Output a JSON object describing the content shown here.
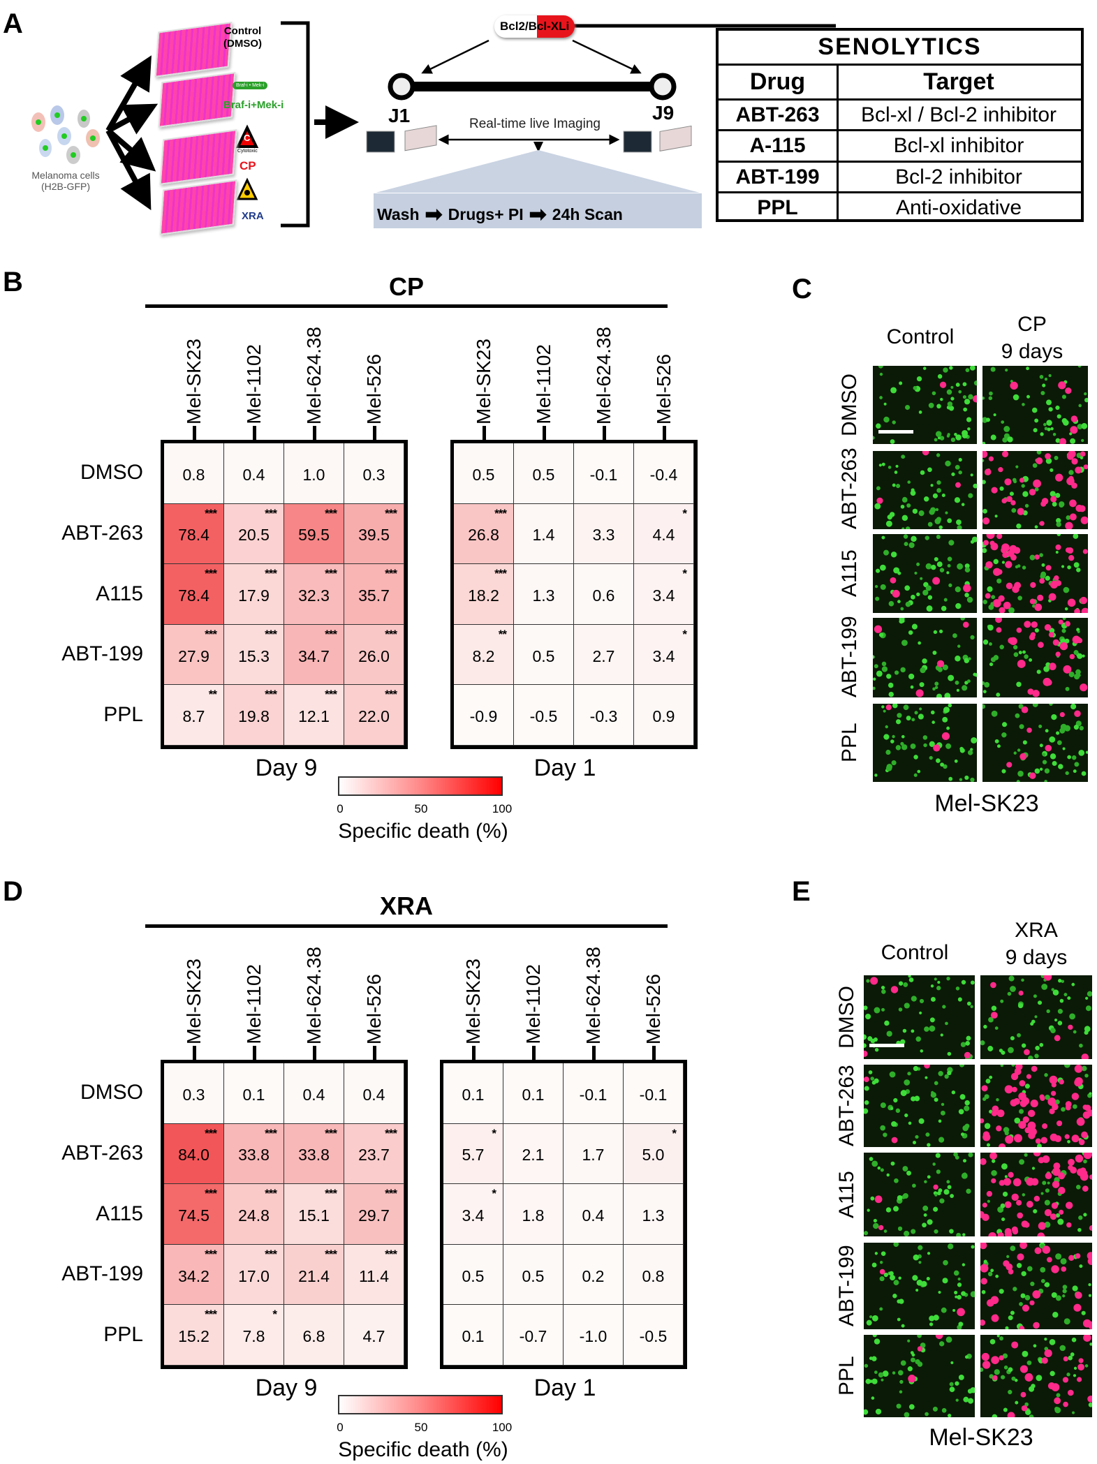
{
  "panel_letters": {
    "a": "A",
    "b": "B",
    "c": "C",
    "d": "D",
    "e": "E"
  },
  "panel_a": {
    "cells_label_1": "Melanoma cells",
    "cells_label_2": "(H2B-GFP)",
    "conditions": {
      "control_1": "Control",
      "control_2": "(DMSO)",
      "braf_pill": "Braf-i • Mek-i",
      "braf": "Braf-i+Mek-i",
      "cytotoxic_icon": "C",
      "cytotoxic_sub": "Cytotoxic",
      "cp": "CP",
      "xra": "XRA"
    },
    "pill": {
      "left": "Bcl2/B",
      "right": "cl-XLi"
    },
    "j1": "J1",
    "j9": "J9",
    "imaging": "Real-time live Imaging",
    "steps": {
      "wash": "Wash",
      "drugs": "Drugs+ PI",
      "scan": "24h Scan"
    },
    "table": {
      "title": "SENOLYTICS",
      "headers": [
        "Drug",
        "Target"
      ],
      "rows": [
        [
          "ABT-263",
          "Bcl-xl / Bcl-2 inhibitor"
        ],
        [
          "A-115",
          "Bcl-xl inhibitor"
        ],
        [
          "ABT-199",
          "Bcl-2 inhibitor"
        ],
        [
          "PPL",
          "Anti-oxidative"
        ]
      ]
    },
    "colors": {
      "cp": "#e8141c",
      "xra": "#1f3a8a",
      "braf": "#2aa02a",
      "pill": "#e8141c"
    }
  },
  "chart_data": [
    {
      "type": "heatmap",
      "group": "CP",
      "title": "Day 9",
      "rows": [
        "DMSO",
        "ABT-263",
        "A115",
        "ABT-199",
        "PPL"
      ],
      "columns": [
        "Mel-SK23",
        "Mel-1102",
        "Mel-624.38",
        "Mel-526"
      ],
      "values": [
        [
          0.8,
          0.4,
          1.0,
          0.3
        ],
        [
          78.4,
          20.5,
          59.5,
          39.5
        ],
        [
          78.4,
          17.9,
          32.3,
          35.7
        ],
        [
          27.9,
          15.3,
          34.7,
          26.0
        ],
        [
          8.7,
          19.8,
          12.1,
          22.0
        ]
      ],
      "significance": [
        [
          "",
          "",
          "",
          ""
        ],
        [
          "***",
          "***",
          "***",
          "***"
        ],
        [
          "***",
          "***",
          "***",
          "***"
        ],
        [
          "***",
          "***",
          "***",
          "***"
        ],
        [
          "**",
          "***",
          "***",
          "***"
        ]
      ],
      "colorbar": {
        "label": "Specific death (%)",
        "min": 0,
        "max": 100,
        "ticks": [
          "0",
          "50",
          "100"
        ],
        "low_color": "#ffffff",
        "high_color": "#ff0000"
      }
    },
    {
      "type": "heatmap",
      "group": "CP",
      "title": "Day 1",
      "rows": [
        "DMSO",
        "ABT-263",
        "A115",
        "ABT-199",
        "PPL"
      ],
      "columns": [
        "Mel-SK23",
        "Mel-1102",
        "Mel-624.38",
        "Mel-526"
      ],
      "values": [
        [
          0.5,
          0.5,
          -0.1,
          -0.4
        ],
        [
          26.8,
          1.4,
          3.3,
          4.4
        ],
        [
          18.2,
          1.3,
          0.6,
          3.4
        ],
        [
          8.2,
          0.5,
          2.7,
          3.4
        ],
        [
          -0.9,
          -0.5,
          -0.3,
          0.9
        ]
      ],
      "significance": [
        [
          "",
          "",
          "",
          ""
        ],
        [
          "***",
          "",
          "",
          "*"
        ],
        [
          "***",
          "",
          "",
          "*"
        ],
        [
          "**",
          "",
          "",
          "*"
        ],
        [
          "",
          "",
          "",
          ""
        ]
      ]
    },
    {
      "type": "heatmap",
      "group": "XRA",
      "title": "Day 9",
      "rows": [
        "DMSO",
        "ABT-263",
        "A115",
        "ABT-199",
        "PPL"
      ],
      "columns": [
        "Mel-SK23",
        "Mel-1102",
        "Mel-624.38",
        "Mel-526"
      ],
      "values": [
        [
          0.3,
          0.1,
          0.4,
          0.4
        ],
        [
          84.0,
          33.8,
          33.8,
          23.7
        ],
        [
          74.5,
          24.8,
          15.1,
          29.7
        ],
        [
          34.2,
          17.0,
          21.4,
          11.4
        ],
        [
          15.2,
          7.8,
          6.8,
          4.7
        ]
      ],
      "significance": [
        [
          "",
          "",
          "",
          ""
        ],
        [
          "***",
          "***",
          "***",
          "***"
        ],
        [
          "***",
          "***",
          "***",
          "***"
        ],
        [
          "***",
          "***",
          "***",
          "***"
        ],
        [
          "***",
          "*",
          "",
          ""
        ]
      ],
      "colorbar": {
        "label": "Specific death (%)",
        "min": 0,
        "max": 100,
        "ticks": [
          "0",
          "50",
          "100"
        ],
        "low_color": "#ffffff",
        "high_color": "#ff0000"
      }
    },
    {
      "type": "heatmap",
      "group": "XRA",
      "title": "Day 1",
      "rows": [
        "DMSO",
        "ABT-263",
        "A115",
        "ABT-199",
        "PPL"
      ],
      "columns": [
        "Mel-SK23",
        "Mel-1102",
        "Mel-624.38",
        "Mel-526"
      ],
      "values": [
        [
          0.1,
          0.1,
          -0.1,
          -0.1
        ],
        [
          5.7,
          2.1,
          1.7,
          5.0
        ],
        [
          3.4,
          1.8,
          0.4,
          1.3
        ],
        [
          0.5,
          0.5,
          0.2,
          0.8
        ],
        [
          0.1,
          -0.7,
          -1.0,
          -0.5
        ]
      ],
      "significance": [
        [
          "",
          "",
          "",
          ""
        ],
        [
          "*",
          "",
          "",
          "*"
        ],
        [
          "*",
          "",
          "",
          ""
        ],
        [
          "",
          "",
          "",
          ""
        ],
        [
          "",
          "",
          "",
          ""
        ]
      ]
    }
  ],
  "panel_c": {
    "col1": "Control",
    "col2_1": "CP",
    "col2_2": "9 days",
    "rows": [
      "DMSO",
      "ABT-263",
      "A115",
      "ABT-199",
      "PPL"
    ],
    "cell_line": "Mel-SK23"
  },
  "panel_e": {
    "col1": "Control",
    "col2_1": "XRA",
    "col2_2": "9 days",
    "rows": [
      "DMSO",
      "ABT-263",
      "A115",
      "ABT-199",
      "PPL"
    ],
    "cell_line": "Mel-SK23"
  }
}
